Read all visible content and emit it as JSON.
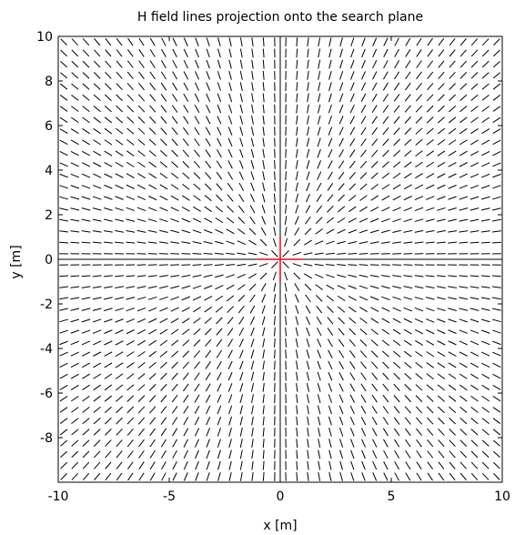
{
  "chart_data": {
    "type": "quiver",
    "title": "H field lines projection onto the search plane",
    "xlabel": "x [m]",
    "ylabel": "y [m]",
    "xlim": [
      -10,
      10
    ],
    "ylim": [
      -10,
      10
    ],
    "xticks": [
      -10,
      -5,
      0,
      5,
      10
    ],
    "yticks": [
      10,
      8,
      6,
      4,
      2,
      0,
      -2,
      -4,
      -6,
      -8
    ],
    "grid": false,
    "field": {
      "description_of_source": "radial field lines from origin",
      "grid_range": [
        -9.75,
        9.75
      ],
      "grid_step": 0.5,
      "segment_length": 0.4
    },
    "origin_marker": {
      "x": 0,
      "y": 0,
      "color": "#ff0000",
      "half_width": 1.0,
      "half_height": 1.0
    },
    "colors": {
      "lines": "#000000",
      "marker": "#ff0000",
      "axes": "#000000"
    }
  }
}
